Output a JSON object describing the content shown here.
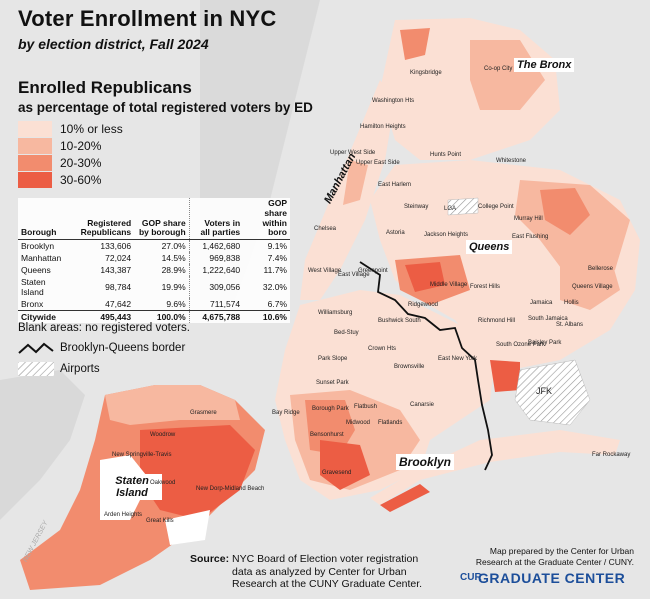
{
  "title": "Voter Enrollment in NYC",
  "subtitle": "by election district, Fall 2024",
  "heading": "Enrolled Republicans",
  "subheading": "as percentage of total registered voters by ED",
  "legend": [
    {
      "label": "10% or less",
      "color": "#fbe0d4"
    },
    {
      "label": "10-20%",
      "color": "#f7b8a0"
    },
    {
      "label": "20-30%",
      "color": "#f28c6e"
    },
    {
      "label": "30-60%",
      "color": "#ec5d44"
    }
  ],
  "table": {
    "headers": [
      "Borough",
      "Registered Republicans",
      "GOP share by borough",
      "Voters in all parties",
      "GOP share within boro"
    ],
    "rows": [
      [
        "Brooklyn",
        "133,606",
        "27.0%",
        "1,462,680",
        "9.1%"
      ],
      [
        "Manhattan",
        "72,024",
        "14.5%",
        "969,838",
        "7.4%"
      ],
      [
        "Queens",
        "143,387",
        "28.9%",
        "1,222,640",
        "11.7%"
      ],
      [
        "Staten Island",
        "98,784",
        "19.9%",
        "309,056",
        "32.0%"
      ],
      [
        "Bronx",
        "47,642",
        "9.6%",
        "711,574",
        "6.7%"
      ]
    ],
    "total": [
      "Citywide",
      "495,443",
      "100.0%",
      "4,675,788",
      "10.6%"
    ]
  },
  "blank_note": "Blank areas: no registered voters.",
  "border_key": "Brooklyn-Queens border",
  "airports_key": "Airports",
  "boroughs": {
    "bronx": "The Bronx",
    "manhattan": "Manhattan",
    "queens": "Queens",
    "brooklyn": "Brooklyn",
    "staten_island": "Staten Island"
  },
  "neighborhoods": {
    "coop_city": "Co-op City",
    "kingsbridge": "Kingsbridge",
    "hunts_point": "Hunts Point",
    "whitestone": "Whitestone",
    "college_point": "College Point",
    "murray_hill": "Murray Hill",
    "east_flushing": "East Flushing",
    "steinway": "Steinway",
    "lga": "LGA",
    "astoria": "Astoria",
    "jackson_heights": "Jackson Heights",
    "greenpoint": "Greenpoint",
    "middle_village": "Middle Village",
    "ridgewood": "Ridgewood",
    "forest_hills": "Forest Hills",
    "richmond_hill": "Richmond Hill",
    "south_jamaica": "South Jamaica",
    "st_albans": "St. Albans",
    "bellerose": "Bellerose",
    "queens_village": "Queens Village",
    "hollis": "Hollis",
    "jamaica": "Jamaica",
    "south_ozone_park": "South Ozone Park",
    "baisley_park": "Baisley Park",
    "williamsburg": "Williamsburg",
    "bushwick_south": "Bushwick South",
    "bed_stuy": "Bed-Stuy",
    "crown_hts": "Crown Hts",
    "park_slope": "Park Slope",
    "brownsville": "Brownsville",
    "east_new_york": "East New York",
    "flatbush": "Flatbush",
    "canarsie": "Canarsie",
    "midwood": "Midwood",
    "flatlands": "Flatlands",
    "bay_ridge": "Bay Ridge",
    "borough_park": "Borough Park",
    "bensonhurst": "Bensonhurst",
    "gravesend": "Gravesend",
    "jfk": "JFK",
    "far_rockaway": "Far Rockaway",
    "woodrow": "Woodrow",
    "new_springville": "New Springville-Travis",
    "new_dorp": "New Dorp-Midland Beach",
    "oakwood": "Oakwood",
    "great_kills": "Great Kills",
    "arden_heights": "Arden Heights",
    "grasmere": "Grasmere",
    "sunset_park": "Sunset Park",
    "upper_west_side": "Upper West Side",
    "upper_east_side": "Upper East Side",
    "east_harlem": "East Harlem",
    "hamilton_heights": "Hamilton Heights",
    "washington_hts": "Washington Hts",
    "chelsea": "Chelsea",
    "west_village": "West Village",
    "east_village": "East Village"
  },
  "source_label": "Source:",
  "source_text": "NYC Board of Election voter registration data as analyzed by Center for Urban Research at the CUNY Graduate Center.",
  "credit": "Map prepared by the Center for Urban Research at the Graduate Center / CUNY.",
  "logo_text": "GRADUATE CENTER",
  "logo_mark": "CUR",
  "water_label": "NEW JERSEY"
}
